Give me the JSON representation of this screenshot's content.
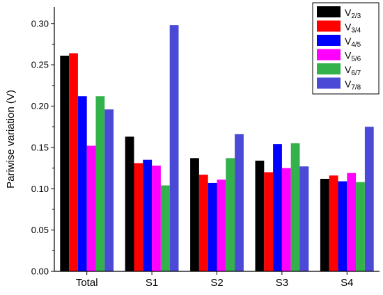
{
  "chart_data": {
    "type": "bar",
    "title": "",
    "xlabel": "",
    "ylabel": "Pariwise variation (V)",
    "ylim": [
      0,
      0.32
    ],
    "yticks": [
      "0.00",
      "0.05",
      "0.10",
      "0.15",
      "0.20",
      "0.25",
      "0.30"
    ],
    "grid": false,
    "legend_position": "top-right",
    "categories": [
      "Total",
      "S1",
      "S2",
      "S3",
      "S4"
    ],
    "series": [
      {
        "name": "V2/3",
        "prefix": "V",
        "sub": "2/3",
        "color": "#000000",
        "values": [
          0.261,
          0.163,
          0.137,
          0.134,
          0.112
        ]
      },
      {
        "name": "V3/4",
        "prefix": "V",
        "sub": "3/4",
        "color": "#ff0000",
        "values": [
          0.264,
          0.131,
          0.117,
          0.12,
          0.116
        ]
      },
      {
        "name": "V4/5",
        "prefix": "V",
        "sub": "4/5",
        "color": "#0000ff",
        "values": [
          0.212,
          0.135,
          0.107,
          0.154,
          0.109
        ]
      },
      {
        "name": "V5/6",
        "prefix": "V",
        "sub": "5/6",
        "color": "#ff00ff",
        "values": [
          0.152,
          0.128,
          0.111,
          0.125,
          0.119
        ]
      },
      {
        "name": "V6/7",
        "prefix": "V",
        "sub": "6/7",
        "color": "#33b24c",
        "values": [
          0.212,
          0.104,
          0.137,
          0.155,
          0.108
        ]
      },
      {
        "name": "V7/8",
        "prefix": "V",
        "sub": "7/8",
        "color": "#4a4ad6",
        "values": [
          0.196,
          0.298,
          0.166,
          0.127,
          0.175
        ]
      }
    ]
  }
}
